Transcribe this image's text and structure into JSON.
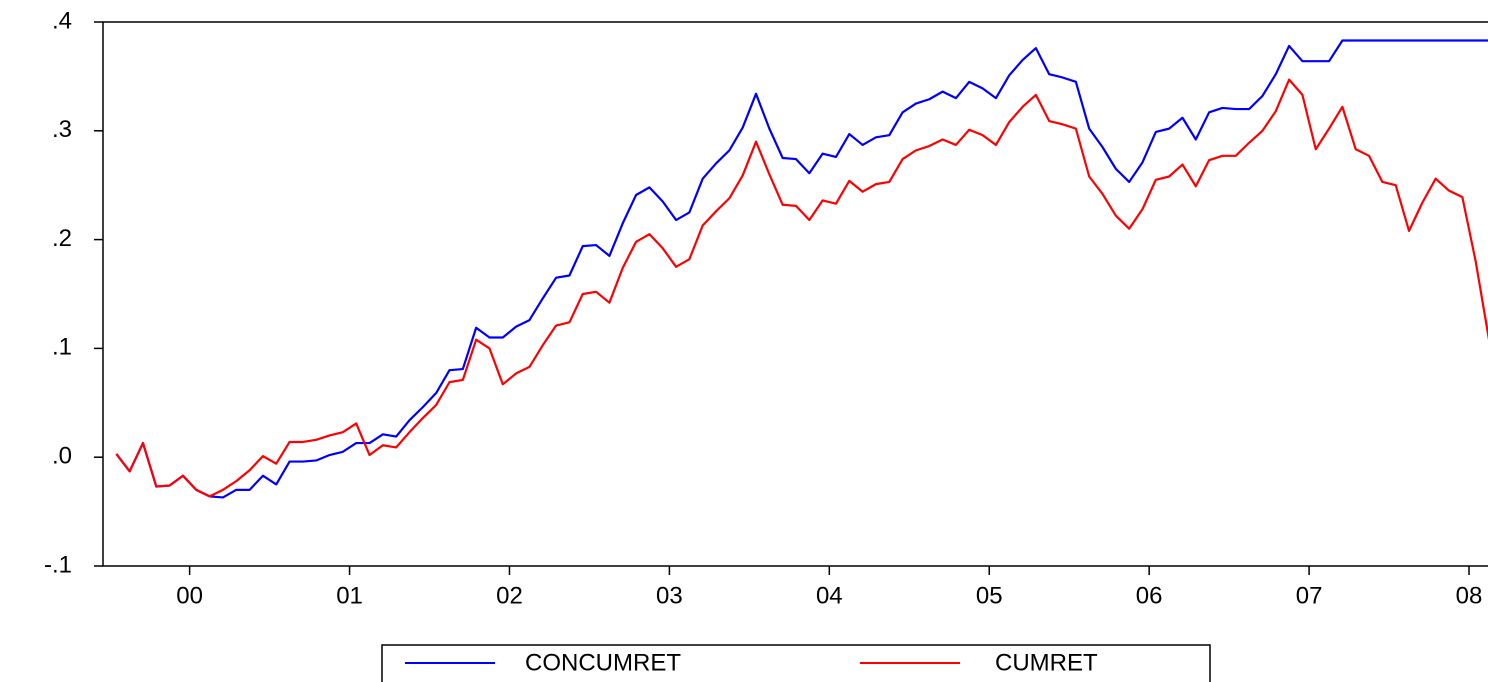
{
  "chart_data": {
    "type": "line",
    "x": [
      0,
      1,
      2,
      3,
      4,
      5,
      6,
      7,
      8,
      9,
      10,
      11,
      12,
      13,
      14,
      15,
      16,
      17,
      18,
      19,
      20,
      21,
      22,
      23,
      24,
      25,
      26,
      27,
      28,
      29,
      30,
      31,
      32,
      33,
      34,
      35,
      36,
      37,
      38,
      39,
      40,
      41,
      42,
      43,
      44,
      45,
      46,
      47,
      48,
      49,
      50,
      51,
      52,
      53,
      54,
      55,
      56,
      57,
      58,
      59,
      60,
      61,
      62,
      63,
      64,
      65,
      66,
      67,
      68,
      69,
      70,
      71,
      72,
      73,
      74,
      75,
      76,
      77,
      78,
      79,
      80,
      81,
      82,
      83,
      84,
      85,
      86,
      87,
      88,
      89,
      90,
      91,
      92,
      93,
      94,
      95,
      96,
      97,
      98,
      99,
      100,
      101,
      102,
      103
    ],
    "series": [
      {
        "name": "CONCUMRET",
        "color": "#0000ff",
        "values": [
          0.003,
          -0.013,
          0.013,
          -0.027,
          -0.026,
          -0.017,
          -0.03,
          -0.036,
          -0.037,
          -0.03,
          -0.03,
          -0.017,
          -0.025,
          -0.004,
          -0.004,
          -0.003,
          0.002,
          0.005,
          0.013,
          0.013,
          0.021,
          0.019,
          0.034,
          0.046,
          0.059,
          0.08,
          0.081,
          0.119,
          0.11,
          0.11,
          0.12,
          0.126,
          0.146,
          0.165,
          0.167,
          0.194,
          0.195,
          0.185,
          0.215,
          0.241,
          0.248,
          0.235,
          0.218,
          0.225,
          0.256,
          0.27,
          0.282,
          0.303,
          0.334,
          0.302,
          0.275,
          0.274,
          0.261,
          0.279,
          0.276,
          0.297,
          0.287,
          0.294,
          0.296,
          0.317,
          0.325,
          0.329,
          0.336,
          0.33,
          0.345,
          0.339,
          0.33,
          0.351,
          0.365,
          0.376,
          0.352,
          0.349,
          0.345,
          0.302,
          0.285,
          0.265,
          0.253,
          0.271,
          0.299,
          0.302,
          0.312,
          0.292,
          0.317,
          0.321,
          0.32,
          0.32,
          0.332,
          0.352,
          0.378,
          0.364,
          0.364,
          0.364,
          0.383,
          0.383,
          0.383,
          0.383,
          0.383,
          0.383,
          0.383,
          0.383,
          0.383,
          0.383,
          0.383,
          0.383
        ]
      },
      {
        "name": "CUMRET",
        "color": "#ff0000",
        "values": [
          0.003,
          -0.013,
          0.013,
          -0.027,
          -0.026,
          -0.017,
          -0.03,
          -0.036,
          -0.03,
          -0.022,
          -0.012,
          0.001,
          -0.006,
          0.014,
          0.014,
          0.016,
          0.02,
          0.023,
          0.031,
          0.002,
          0.011,
          0.009,
          0.023,
          0.036,
          0.048,
          0.069,
          0.071,
          0.108,
          0.1,
          0.067,
          0.077,
          0.083,
          0.103,
          0.121,
          0.124,
          0.15,
          0.152,
          0.142,
          0.174,
          0.198,
          0.205,
          0.192,
          0.175,
          0.182,
          0.213,
          0.226,
          0.238,
          0.259,
          0.29,
          0.26,
          0.232,
          0.231,
          0.218,
          0.236,
          0.233,
          0.254,
          0.244,
          0.251,
          0.253,
          0.274,
          0.282,
          0.286,
          0.292,
          0.287,
          0.301,
          0.296,
          0.287,
          0.308,
          0.322,
          0.333,
          0.309,
          0.306,
          0.302,
          0.258,
          0.242,
          0.222,
          0.21,
          0.228,
          0.255,
          0.258,
          0.269,
          0.249,
          0.273,
          0.277,
          0.277,
          0.289,
          0.3,
          0.318,
          0.347,
          0.333,
          0.283,
          0.302,
          0.322,
          0.283,
          0.277,
          0.253,
          0.25,
          0.208,
          0.234,
          0.256,
          0.245,
          0.239,
          0.18,
          0.108
        ]
      }
    ],
    "xlim": [
      -1,
      103
    ],
    "xticks": [
      {
        "value": 5.5,
        "label": "00"
      },
      {
        "value": 17.5,
        "label": "01"
      },
      {
        "value": 29.5,
        "label": "02"
      },
      {
        "value": 41.5,
        "label": "03"
      },
      {
        "value": 53.5,
        "label": "04"
      },
      {
        "value": 65.5,
        "label": "05"
      },
      {
        "value": 77.5,
        "label": "06"
      },
      {
        "value": 89.5,
        "label": "07"
      },
      {
        "value": 101.5,
        "label": "08"
      }
    ],
    "ylim": [
      -0.1,
      0.4
    ],
    "yticks": [
      {
        "value": -0.1,
        "label": "-.1"
      },
      {
        "value": 0,
        "label": ".0"
      },
      {
        "value": 0.1,
        "label": ".1"
      },
      {
        "value": 0.2,
        "label": ".2"
      },
      {
        "value": 0.3,
        "label": ".3"
      },
      {
        "value": 0.4,
        "label": ".4"
      }
    ],
    "grid": false,
    "legend": "bottom"
  }
}
